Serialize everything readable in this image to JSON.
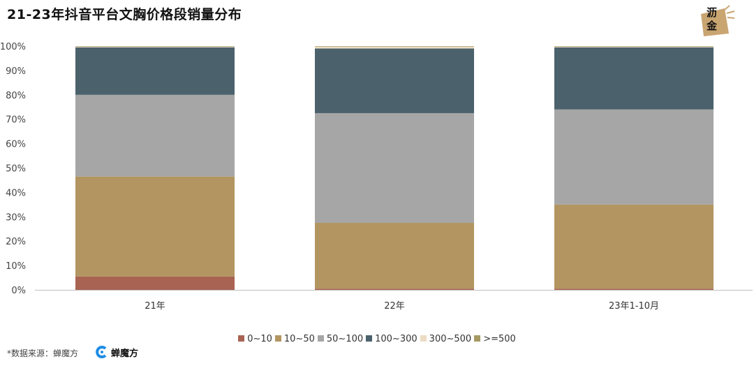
{
  "title": "21-23年抖音平台文胸价格段销量分布",
  "logo": {
    "line1": "沥",
    "line2": "金"
  },
  "source_label": "*数据来源：蝉魔方",
  "brand_name": "蝉魔方",
  "colors": {
    "0~10": "#a86352",
    "10~50": "#b39561",
    "50~100": "#a6a6a6",
    "100~300": "#4b626c",
    "300~500": "#ebdcc3",
    ">=500": "#a69a64",
    "axis": "#bfbfbf",
    "brand_blue": "#1f8ce5",
    "logo_bg": "#c9a572"
  },
  "chart_data": {
    "type": "bar",
    "stacked": true,
    "percent": true,
    "categories": [
      "21年",
      "22年",
      "23年1-10月"
    ],
    "series": [
      {
        "name": "0~10",
        "values": [
          5.5,
          0.5,
          0.5
        ]
      },
      {
        "name": "10~50",
        "values": [
          41,
          27,
          34.5
        ]
      },
      {
        "name": "50~100",
        "values": [
          33.5,
          45,
          39
        ]
      },
      {
        "name": "100~300",
        "values": [
          19.5,
          26.5,
          25.5
        ]
      },
      {
        "name": "300~500",
        "values": [
          0.3,
          0.8,
          0.3
        ]
      },
      {
        "name": ">=500",
        "values": [
          0.2,
          0.2,
          0.2
        ]
      }
    ],
    "yticks": [
      "0%",
      "10%",
      "20%",
      "30%",
      "40%",
      "50%",
      "60%",
      "70%",
      "80%",
      "90%",
      "100%"
    ],
    "ylim": [
      0,
      100
    ],
    "legend_position": "bottom",
    "grid": false
  }
}
